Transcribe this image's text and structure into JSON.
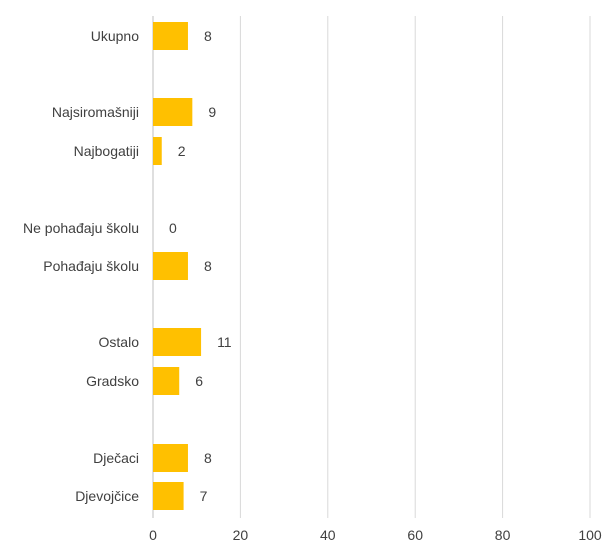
{
  "chart_data": {
    "type": "bar",
    "orientation": "horizontal",
    "categories": [
      "Ukupno",
      "Najsiromašniji",
      "Najbogatiji",
      "Ne pohađaju školu",
      "Pohađaju školu",
      "Ostalo",
      "Gradsko",
      "Dječaci",
      "Djevojčice"
    ],
    "values": [
      8,
      9,
      2,
      0,
      8,
      11,
      6,
      8,
      7
    ],
    "value_labels": [
      "8",
      "9",
      "2",
      "0",
      "8",
      "11",
      "6",
      "8",
      "7"
    ],
    "xlim": [
      0,
      100
    ],
    "x_ticks": [
      0,
      20,
      40,
      60,
      80,
      100
    ],
    "x_tick_labels": [
      "0",
      "20",
      "40",
      "60",
      "80",
      "100"
    ],
    "grid": true,
    "bar_color": "#FFC000",
    "title": "",
    "xlabel": "",
    "ylabel": ""
  }
}
